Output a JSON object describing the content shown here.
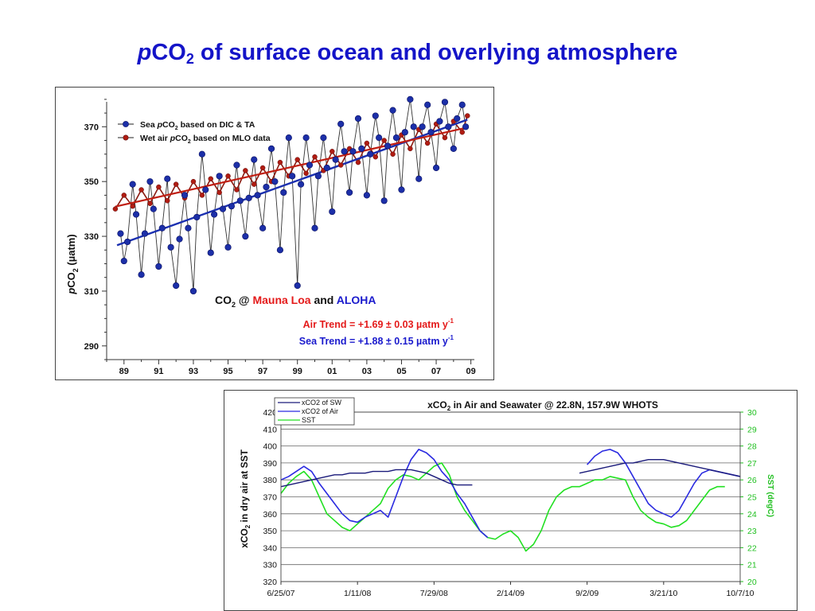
{
  "slide": {
    "title_italic": "p",
    "title_co": "CO",
    "title_sub": "2",
    "title_rest": " of surface ocean and overlying atmosphere"
  },
  "colors": {
    "title": "#1414c8",
    "sea": "#1c2fa8",
    "air": "#b01c12",
    "air_label": "#e41a1a",
    "sea_label": "#1a1acd",
    "whots_air": "#1a1a7a",
    "whots_sw": "#2a2ae0",
    "whots_sst": "#22e022"
  },
  "chart_data": [
    {
      "type": "line",
      "ylabel_p": "p",
      "ylabel_rest": "CO",
      "ylabel_sub": "2",
      "ylabel_unit": " (µatm)",
      "ylim": [
        285,
        382
      ],
      "yticks": [
        290,
        310,
        330,
        350,
        370
      ],
      "xlim": [
        1988.0,
        2009.2
      ],
      "xticks": [
        1989,
        1991,
        1993,
        1995,
        1997,
        1999,
        2001,
        2003,
        2005,
        2007,
        2009
      ],
      "xticklabels": [
        "89",
        "91",
        "93",
        "95",
        "97",
        "99",
        "01",
        "03",
        "05",
        "07",
        "09"
      ],
      "legend": {
        "position": "top-left",
        "sea_p1": "Sea ",
        "sea_p": "p",
        "sea_co": "CO",
        "sea_sub": "2",
        "sea_rest": " based on DIC & TA",
        "air_p1": "Wet air ",
        "air_p": "p",
        "air_co": "CO",
        "air_sub": "2",
        "air_rest": " based on MLO data"
      },
      "annotations": {
        "co2_at": "CO",
        "co2_sub": "2",
        "co2_mid": " @ ",
        "mauna_loa": "Mauna Loa",
        "and": " and ",
        "aloha": "ALOHA",
        "air_trend": "Air Trend = +1.69 ± 0.03 µatm y",
        "air_trend_sup": "-1",
        "sea_trend": "Sea Trend = +1.88 ± 0.15 µatm y",
        "sea_trend_sup": "-1"
      },
      "series": [
        {
          "name": "Sea pCO2 based on DIC & TA",
          "x": [
            1988.8,
            1989.0,
            1989.2,
            1989.5,
            1989.7,
            1990.0,
            1990.2,
            1990.5,
            1990.7,
            1991.0,
            1991.2,
            1991.5,
            1991.7,
            1992.0,
            1992.2,
            1992.5,
            1992.7,
            1993.0,
            1993.2,
            1993.5,
            1993.7,
            1994.0,
            1994.2,
            1994.5,
            1994.7,
            1995.0,
            1995.2,
            1995.5,
            1995.7,
            1996.0,
            1996.2,
            1996.5,
            1996.7,
            1997.0,
            1997.2,
            1997.5,
            1997.7,
            1998.0,
            1998.2,
            1998.5,
            1998.7,
            1999.0,
            1999.2,
            1999.5,
            1999.7,
            2000.0,
            2000.2,
            2000.5,
            2000.7,
            2001.0,
            2001.2,
            2001.5,
            2001.7,
            2002.0,
            2002.2,
            2002.5,
            2002.7,
            2003.0,
            2003.2,
            2003.5,
            2003.7,
            2004.0,
            2004.2,
            2004.5,
            2004.7,
            2005.0,
            2005.2,
            2005.5,
            2005.7,
            2006.0,
            2006.2,
            2006.5,
            2006.7,
            2007.0,
            2007.2,
            2007.5,
            2007.7,
            2008.0,
            2008.2,
            2008.5,
            2008.7
          ],
          "y": [
            331,
            321,
            328,
            349,
            338,
            316,
            331,
            350,
            340,
            319,
            333,
            351,
            326,
            312,
            329,
            345,
            333,
            310,
            337,
            360,
            347,
            324,
            338,
            352,
            340,
            326,
            341,
            356,
            343,
            330,
            344,
            358,
            345,
            333,
            348,
            362,
            350,
            325,
            346,
            366,
            352,
            312,
            349,
            366,
            356,
            333,
            352,
            366,
            355,
            339,
            358,
            371,
            361,
            346,
            361,
            373,
            362,
            345,
            360,
            374,
            366,
            343,
            363,
            376,
            366,
            347,
            368,
            380,
            370,
            351,
            370,
            378,
            368,
            355,
            372,
            379,
            370,
            362,
            373,
            378,
            370
          ]
        },
        {
          "name": "Wet air pCO2 based on MLO data",
          "x": [
            1988.5,
            1989.0,
            1989.5,
            1990.0,
            1990.5,
            1991.0,
            1991.5,
            1992.0,
            1992.5,
            1993.0,
            1993.5,
            1994.0,
            1994.5,
            1995.0,
            1995.5,
            1996.0,
            1996.5,
            1997.0,
            1997.5,
            1998.0,
            1998.5,
            1999.0,
            1999.5,
            2000.0,
            2000.5,
            2001.0,
            2001.5,
            2002.0,
            2002.5,
            2003.0,
            2003.5,
            2004.0,
            2004.5,
            2005.0,
            2005.5,
            2006.0,
            2006.5,
            2007.0,
            2007.5,
            2008.0,
            2008.5,
            2008.8
          ],
          "y": [
            340,
            345,
            341,
            347,
            342,
            348,
            343,
            349,
            344,
            350,
            345,
            351,
            346,
            352,
            347,
            354,
            349,
            355,
            350,
            357,
            352,
            358,
            353,
            359,
            354,
            361,
            356,
            362,
            357,
            364,
            359,
            365,
            360,
            367,
            362,
            369,
            364,
            371,
            366,
            372,
            368,
            374
          ]
        }
      ]
    },
    {
      "type": "line",
      "title_a": "xCO",
      "title_sub": "2",
      "title_b": " in Air and Seawater  @ 22.8N, 157.9W WHOTS",
      "ylabel_left": "xCO",
      "ylabel_left_sub": "2",
      "ylabel_left_rest": " in dry air at SST",
      "ylabel_right": "SST (degC)",
      "ylim": [
        320,
        420
      ],
      "yticks": [
        320,
        330,
        340,
        350,
        360,
        370,
        380,
        390,
        400,
        410,
        420
      ],
      "y2lim": [
        20,
        30
      ],
      "y2ticks": [
        20,
        21,
        22,
        23,
        24,
        25,
        26,
        27,
        28,
        29,
        30
      ],
      "xlim": [
        0,
        1200
      ],
      "xticks": [
        0,
        200,
        400,
        600,
        800,
        1000,
        1200
      ],
      "xticklabels": [
        "6/25/07",
        "1/11/08",
        "7/29/08",
        "2/14/09",
        "9/2/09",
        "3/21/10",
        "10/7/10"
      ],
      "legend": {
        "position": "top-left",
        "items": [
          "xCO2 of SW",
          "xCO2 of Air",
          "SST"
        ]
      },
      "series": [
        {
          "name": "xCO2 of SW",
          "x": [
            0,
            20,
            40,
            60,
            80,
            100,
            120,
            140,
            160,
            180,
            200,
            220,
            240,
            260,
            280,
            300,
            320,
            340,
            360,
            380,
            400,
            420,
            440,
            460,
            480,
            500,
            520,
            540,
            560,
            580,
            600,
            620,
            640,
            660,
            680,
            700,
            720,
            740,
            760,
            780,
            800,
            820,
            840,
            860,
            880,
            900,
            920,
            940,
            960,
            980,
            1000,
            1020,
            1040,
            1060,
            1080,
            1100,
            1120,
            1140,
            1160,
            1180,
            1200
          ],
          "y": [
            380,
            382,
            385,
            388,
            385,
            378,
            372,
            366,
            360,
            356,
            355,
            358,
            360,
            362,
            358,
            370,
            382,
            392,
            398,
            396,
            392,
            385,
            380,
            372,
            366,
            358,
            350,
            346,
            null,
            null,
            null,
            null,
            null,
            null,
            null,
            null,
            null,
            null,
            null,
            null,
            389,
            394,
            397,
            398,
            396,
            390,
            382,
            374,
            366,
            362,
            360,
            358,
            362,
            370,
            378,
            384,
            386,
            385,
            384,
            383,
            382
          ]
        },
        {
          "name": "xCO2 of Air",
          "x": [
            0,
            20,
            40,
            60,
            80,
            100,
            120,
            140,
            160,
            180,
            200,
            220,
            240,
            260,
            280,
            300,
            320,
            340,
            360,
            380,
            400,
            420,
            440,
            460,
            480,
            500,
            520,
            540,
            560,
            580,
            600,
            620,
            640,
            660,
            680,
            700,
            720,
            740,
            760,
            780,
            800,
            820,
            840,
            860,
            880,
            900,
            920,
            940,
            960,
            980,
            1000,
            1020,
            1040,
            1060,
            1080,
            1100,
            1120,
            1140,
            1160,
            1180,
            1200
          ],
          "y": [
            376,
            377,
            378,
            379,
            380,
            381,
            382,
            383,
            383,
            384,
            384,
            384,
            385,
            385,
            385,
            386,
            386,
            386,
            385,
            384,
            382,
            380,
            378,
            377,
            377,
            377,
            null,
            null,
            null,
            null,
            null,
            null,
            null,
            null,
            null,
            null,
            null,
            null,
            null,
            384,
            385,
            386,
            387,
            388,
            389,
            390,
            390,
            391,
            392,
            392,
            392,
            391,
            390,
            389,
            388,
            387,
            386,
            385,
            384,
            383,
            382
          ]
        },
        {
          "name": "SST",
          "x": [
            0,
            20,
            40,
            60,
            80,
            100,
            120,
            140,
            160,
            180,
            200,
            220,
            240,
            260,
            280,
            300,
            320,
            340,
            360,
            380,
            400,
            420,
            440,
            460,
            480,
            500,
            520,
            540,
            560,
            580,
            600,
            620,
            640,
            660,
            680,
            700,
            720,
            740,
            760,
            780,
            800,
            820,
            840,
            860,
            880,
            900,
            920,
            940,
            960,
            980,
            1000,
            1020,
            1040,
            1060,
            1080,
            1100,
            1120,
            1140,
            1160,
            1180,
            1200
          ],
          "y": [
            25.2,
            25.8,
            26.2,
            26.5,
            26.0,
            25.0,
            24.0,
            23.6,
            23.2,
            23.0,
            23.4,
            23.8,
            24.2,
            24.6,
            25.5,
            26.0,
            26.3,
            26.2,
            26.0,
            26.4,
            26.8,
            27.0,
            26.3,
            25.0,
            24.2,
            23.6,
            23.0,
            22.6,
            22.5,
            22.8,
            23.0,
            22.6,
            21.8,
            22.2,
            23.0,
            24.2,
            25.0,
            25.4,
            25.6,
            25.6,
            25.8,
            26.0,
            26.0,
            26.2,
            26.1,
            26.0,
            25.0,
            24.2,
            23.8,
            23.5,
            23.4,
            23.2,
            23.3,
            23.6,
            24.2,
            24.8,
            25.4,
            25.6,
            25.6,
            null,
            null
          ]
        }
      ]
    }
  ]
}
